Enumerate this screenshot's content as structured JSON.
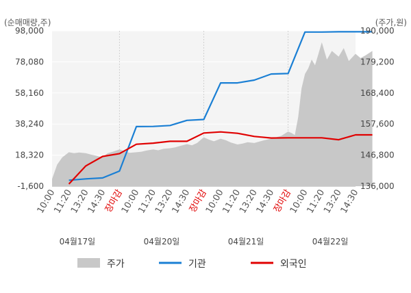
{
  "chart_data": {
    "type": "line",
    "left_axis_title": "(순매매량,주)",
    "right_axis_title": "(주가,원)",
    "left_ticks": [
      "98,000",
      "78,080",
      "58,160",
      "38,240",
      "18,320",
      "-1,600"
    ],
    "right_ticks": [
      "190,000",
      "179,200",
      "168,400",
      "157,600",
      "146,800",
      "136,000"
    ],
    "left_range": [
      -1600,
      98000
    ],
    "right_range": [
      136000,
      190000
    ],
    "x_tick_labels": [
      {
        "label": "10:00",
        "red": false
      },
      {
        "label": "11:20",
        "red": false
      },
      {
        "label": "13:20",
        "red": false
      },
      {
        "label": "14:30",
        "red": false
      },
      {
        "label": "장마감",
        "red": true
      },
      {
        "label": "10:00",
        "red": false
      },
      {
        "label": "11:20",
        "red": false
      },
      {
        "label": "13:20",
        "red": false
      },
      {
        "label": "14:30",
        "red": false
      },
      {
        "label": "장마감",
        "red": true
      },
      {
        "label": "10:00",
        "red": false
      },
      {
        "label": "11:20",
        "red": false
      },
      {
        "label": "13:20",
        "red": false
      },
      {
        "label": "14:30",
        "red": false
      },
      {
        "label": "장마감",
        "red": true
      },
      {
        "label": "10:00",
        "red": false
      },
      {
        "label": "11:20",
        "red": false
      },
      {
        "label": "13:20",
        "red": false
      },
      {
        "label": "14:30",
        "red": false
      }
    ],
    "dates": [
      "04월17일",
      "04월20일",
      "04월21일",
      "04월22일"
    ],
    "series": [
      {
        "name": "주가",
        "axis": "right",
        "style": "area",
        "color": "#c8c8c8",
        "x": [
          0,
          0.3,
          0.6,
          1,
          1.3,
          1.6,
          2,
          2.3,
          2.6,
          3,
          3.3,
          3.6,
          4,
          4.3,
          4.6,
          5,
          5.3,
          5.6,
          6,
          6.3,
          6.6,
          7,
          7.3,
          7.6,
          8,
          8.3,
          8.6,
          9,
          9.3,
          9.6,
          10,
          10.3,
          10.6,
          11,
          11.3,
          11.6,
          12,
          12.3,
          12.6,
          13,
          13.3,
          13.6,
          14,
          14.2,
          14.4,
          14.6,
          14.8,
          15,
          15.2,
          15.4,
          15.6,
          15.8,
          16,
          16.3,
          16.6,
          17,
          17.3,
          17.6,
          18,
          18.3,
          18.6,
          19
        ],
        "values": [
          138500,
          143500,
          146000,
          147800,
          147500,
          147700,
          147500,
          147000,
          146600,
          146000,
          147500,
          148000,
          148800,
          148200,
          147600,
          147800,
          148000,
          148400,
          148800,
          148500,
          149000,
          149200,
          149500,
          150000,
          150600,
          150200,
          151000,
          153000,
          152200,
          151600,
          152500,
          152000,
          151200,
          150500,
          150800,
          151300,
          151000,
          151500,
          152000,
          152500,
          153000,
          153500,
          155000,
          154500,
          153800,
          160000,
          170000,
          175000,
          177000,
          180000,
          178000,
          182000,
          186000,
          180000,
          183000,
          181000,
          184000,
          179500,
          182000,
          180500,
          181500,
          183000
        ]
      },
      {
        "name": "기관",
        "axis": "left",
        "style": "line",
        "color": "#1a7fd4",
        "x": [
          1,
          2,
          3,
          4,
          5,
          6,
          7,
          8,
          9,
          10,
          11,
          12,
          13,
          14,
          15,
          16,
          17,
          18,
          19
        ],
        "values": [
          2200,
          3100,
          3700,
          8100,
          36600,
          36700,
          37300,
          40600,
          41200,
          64600,
          64600,
          66400,
          70300,
          70600,
          97200,
          97200,
          97400,
          97400,
          97400
        ]
      },
      {
        "name": "외국인",
        "axis": "left",
        "style": "line",
        "color": "#e00000",
        "x": [
          1,
          2,
          3,
          4,
          5,
          6,
          7,
          8,
          9,
          10,
          11,
          12,
          13,
          14,
          15,
          16,
          17,
          18,
          19
        ],
        "values": [
          -200,
          11400,
          17500,
          19300,
          25300,
          26000,
          27200,
          27200,
          32500,
          33200,
          32300,
          30300,
          29300,
          29400,
          29400,
          29400,
          28200,
          31300,
          31300
        ]
      }
    ],
    "grid": true,
    "legend_position": "bottom"
  }
}
